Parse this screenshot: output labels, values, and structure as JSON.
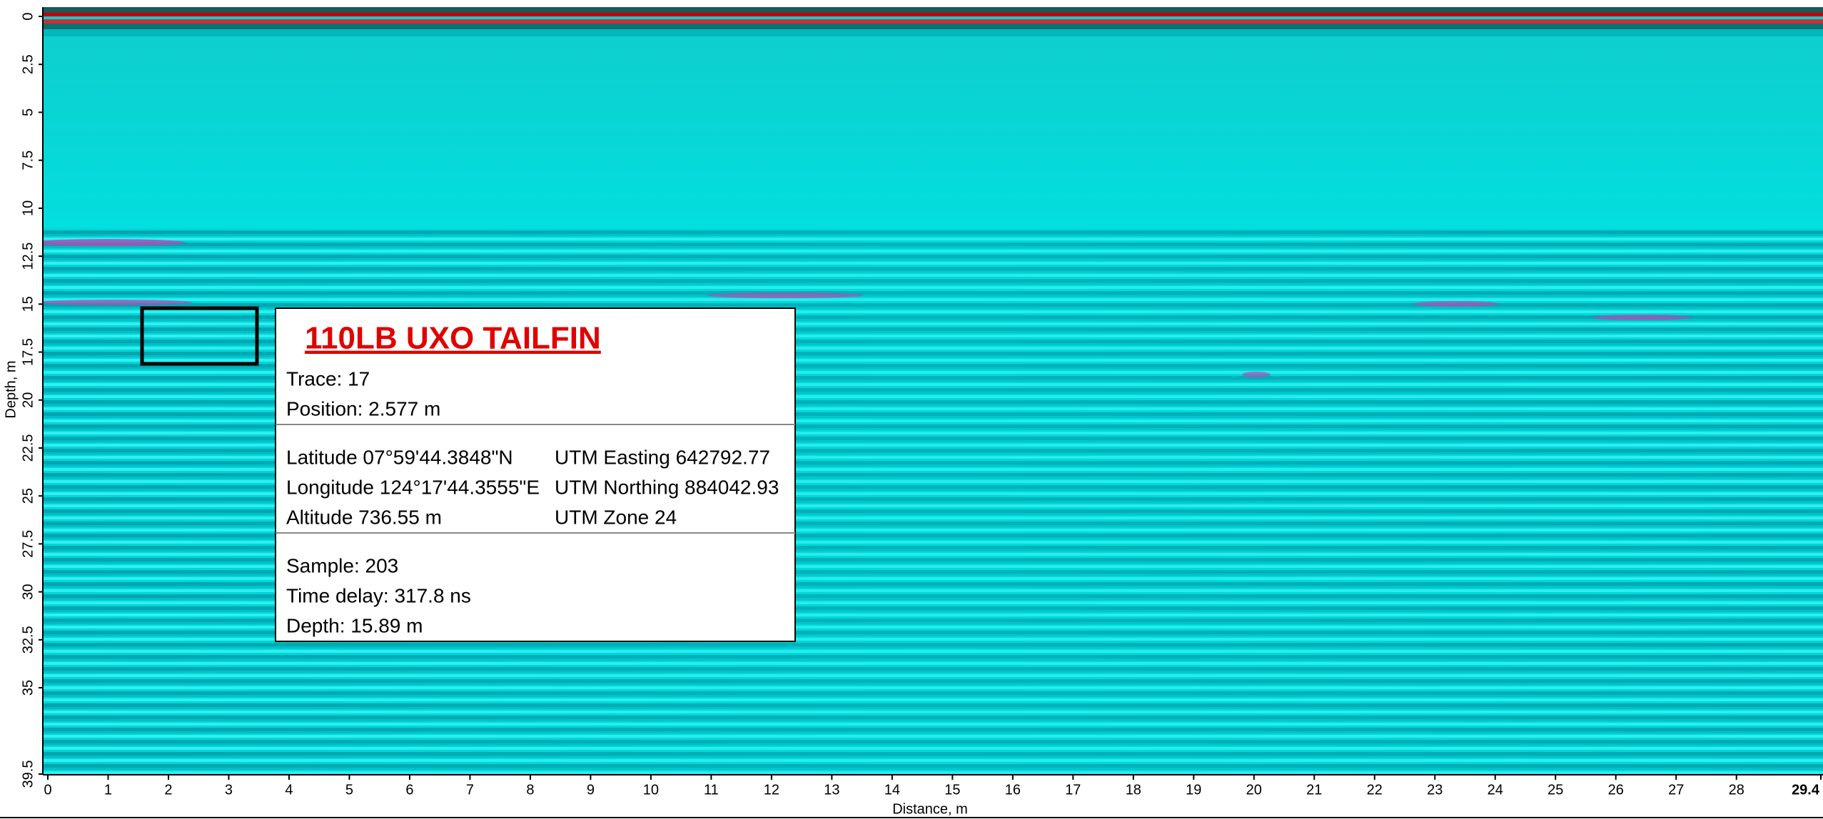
{
  "y_axis": {
    "label": "Depth, m",
    "range": [
      0,
      39.5
    ],
    "ticks": [
      0,
      2.5,
      5,
      7.5,
      10,
      12.5,
      15,
      17.5,
      20,
      22.5,
      25,
      27.5,
      30,
      32.5,
      35,
      39.5
    ]
  },
  "x_axis": {
    "label": "Distance, m",
    "range": [
      0,
      29.4
    ],
    "ticks": [
      0,
      1,
      2,
      3,
      4,
      5,
      6,
      7,
      8,
      9,
      10,
      11,
      12,
      13,
      14,
      15,
      16,
      17,
      18,
      19,
      20,
      21,
      22,
      23,
      24,
      25,
      26,
      27,
      28,
      29.4
    ]
  },
  "info_panel": {
    "title": "110LB UXO TAILFIN",
    "sections": [
      {
        "rows": [
          {
            "left": "Trace:  17"
          },
          {
            "left": "Position:  2.577 m"
          }
        ]
      },
      {
        "rows": [
          {
            "left": "Latitude 07°59'44.3848\"N",
            "right": "UTM Easting 642792.77"
          },
          {
            "left": "Longitude 124°17'44.3555\"E",
            "right": "UTM Northing 884042.93"
          },
          {
            "left": "Altitude 736.55 m",
            "right": "UTM Zone 24"
          }
        ]
      },
      {
        "rows": [
          {
            "left": "Sample:  203"
          },
          {
            "left": "Time delay:  317.8 ns"
          },
          {
            "left": "Depth:  15.89 m"
          }
        ]
      }
    ]
  }
}
